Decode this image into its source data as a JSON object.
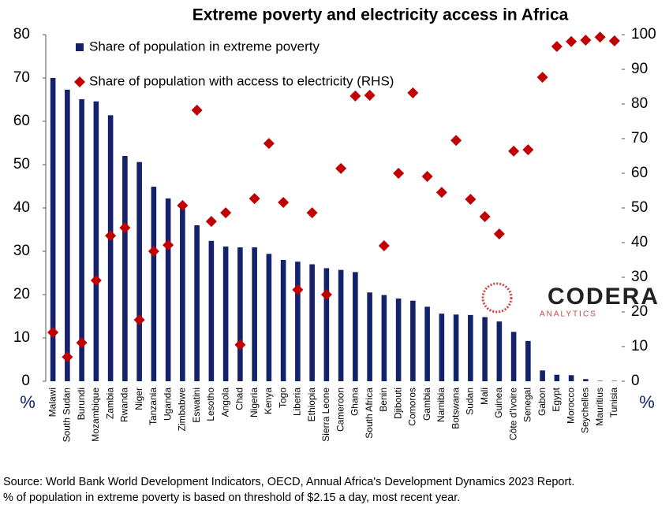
{
  "chart_data": {
    "type": "bar_scatter",
    "title": "Extreme poverty and electricity access in Africa",
    "categories": [
      "Malawi",
      "South Sudan",
      "Burundi",
      "Mozambique",
      "Zambia",
      "Rwanda",
      "Niger",
      "Tanzania",
      "Uganda",
      "Zimbabwe",
      "Eswatini",
      "Lesotho",
      "Angola",
      "Chad",
      "Nigeria",
      "Kenya",
      "Togo",
      "Liberia",
      "Ethiopia",
      "Sierra Leone",
      "Cameroon",
      "Ghana",
      "South Africa",
      "Benin",
      "Djibouti",
      "Comoros",
      "Gambia",
      "Namibia",
      "Botswana",
      "Sudan",
      "Mali",
      "Guinea",
      "Côte d'Ivoire",
      "Senegal",
      "Gabon",
      "Egypt",
      "Morocco",
      "Seychelles",
      "Mauritius",
      "Tunisia"
    ],
    "series": [
      {
        "name": "Share of population in extreme poverty",
        "color": "#14226b",
        "kind": "bar",
        "values": [
          70,
          67.3,
          65.1,
          64.6,
          61.4,
          52,
          50.6,
          44.9,
          42.2,
          39.8,
          36,
          32.4,
          31.1,
          30.9,
          30.9,
          29.4,
          28,
          27.6,
          27,
          26.1,
          25.7,
          25.2,
          20.5,
          19.9,
          19.1,
          18.6,
          17.2,
          15.6,
          15.4,
          15.3,
          14.8,
          13.8,
          11.4,
          9.3,
          2.5,
          1.5,
          1.4,
          0.5,
          0.1,
          0.1
        ]
      },
      {
        "name": "Share of population with access to electricity (RHS)",
        "color": "#c00000",
        "kind": "marker",
        "axis": "y2",
        "values": [
          14.1,
          7,
          11.1,
          29.1,
          42,
          44.3,
          17.7,
          37.5,
          39.3,
          50.7,
          78.2,
          46.1,
          48.6,
          10.5,
          52.7,
          68.6,
          51.6,
          26.4,
          48.6,
          25,
          61.4,
          82.3,
          82.5,
          39.1,
          60,
          83.2,
          59.1,
          54.5,
          69.5,
          52.5,
          47.5,
          42.5,
          66.4,
          66.8,
          87.7,
          96.6,
          98,
          98.4,
          99.3,
          98.2
        ]
      }
    ],
    "ylim": [
      0,
      80
    ],
    "yticks": [
      0,
      10,
      20,
      30,
      40,
      50,
      60,
      70,
      80
    ],
    "y2lim": [
      0,
      100
    ],
    "y2ticks": [
      0,
      10,
      20,
      30,
      40,
      50,
      60,
      70,
      80,
      90,
      100
    ],
    "y_unit": "%",
    "y2_unit": "%",
    "logo": {
      "name": "CODERA",
      "sub": "ANALYTICS"
    },
    "source": [
      "Source: World Bank World Development Indicators, OECD, Annual Africa's Development Dynamics 2023 Report.",
      "% of population in extreme poverty is based on threshold of $2.15 a day, most recent year."
    ]
  }
}
